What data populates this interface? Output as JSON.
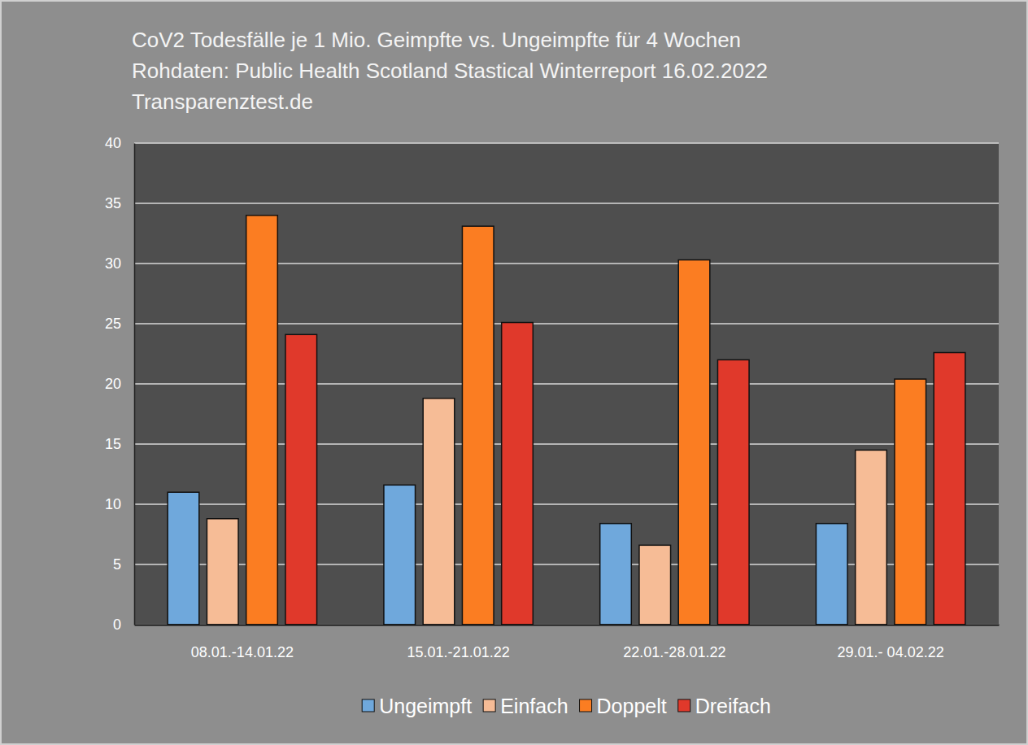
{
  "chart_data": {
    "type": "bar",
    "title": [
      "CoV2 Todesfälle je 1 Mio. Geimpfte vs. Ungeimpfte für 4 Wochen",
      "Rohdaten: Public Health Scotland Stastical Winterreport 16.02.2022",
      "Transparenztest.de"
    ],
    "categories": [
      "08.01.-14.01.22",
      "15.01.-21.01.22",
      "22.01.-28.01.22",
      "29.01.- 04.02.22"
    ],
    "series": [
      {
        "name": "Ungeimpft",
        "color": "#6fa8dc",
        "values": [
          11.0,
          11.6,
          8.4,
          8.4
        ]
      },
      {
        "name": "Einfach",
        "color": "#f6bc96",
        "values": [
          8.8,
          18.8,
          6.6,
          14.5
        ]
      },
      {
        "name": "Doppelt",
        "color": "#fb7d22",
        "values": [
          34.0,
          33.1,
          30.3,
          20.4
        ]
      },
      {
        "name": "Dreifach",
        "color": "#e0392b",
        "values": [
          24.1,
          25.1,
          22.0,
          22.6
        ]
      }
    ],
    "ylim": [
      0,
      40
    ],
    "yticks": [
      0,
      5,
      10,
      15,
      20,
      25,
      30,
      35,
      40
    ],
    "grid": true,
    "legend": "bottom"
  }
}
